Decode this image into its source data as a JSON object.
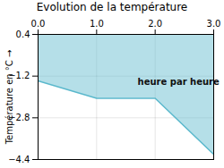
{
  "chart_data": {
    "type": "area",
    "title": "Evolution de la température",
    "ylabel": "Température en °C",
    "x": [
      0,
      1,
      2,
      3
    ],
    "values": [
      -1.38,
      -2.05,
      -2.05,
      -4.2
    ],
    "fill_top": 0.4,
    "color": "#5ab8cc",
    "xlim": [
      0,
      3
    ],
    "ylim": [
      -4.4,
      0.4
    ],
    "xticks": [
      0,
      1,
      2,
      3
    ],
    "yticks": [
      0.4,
      -1.2,
      -2.8,
      -4.4
    ],
    "grid": true,
    "annotations": [
      {
        "text": "heure par heure",
        "x": 1.7,
        "y": -1.3
      }
    ]
  }
}
